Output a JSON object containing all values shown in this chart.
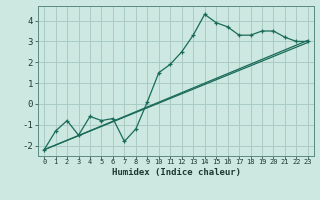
{
  "xlabel": "Humidex (Indice chaleur)",
  "bg_color": "#cce8e0",
  "grid_color": "#aaccc4",
  "line_color": "#1a6b5a",
  "xlim": [
    -0.5,
    23.5
  ],
  "ylim": [
    -2.5,
    4.7
  ],
  "xticks": [
    0,
    1,
    2,
    3,
    4,
    5,
    6,
    7,
    8,
    9,
    10,
    11,
    12,
    13,
    14,
    15,
    16,
    17,
    18,
    19,
    20,
    21,
    22,
    23
  ],
  "yticks": [
    -2,
    -1,
    0,
    1,
    2,
    3,
    4
  ],
  "line1_x": [
    0,
    1,
    2,
    3,
    4,
    5,
    6,
    7,
    8,
    9,
    10,
    11,
    12,
    13,
    14,
    15,
    16,
    17,
    18,
    19,
    20,
    21,
    22,
    23
  ],
  "line1_y": [
    -2.2,
    -1.3,
    -0.8,
    -1.5,
    -0.6,
    -0.8,
    -0.7,
    -1.8,
    -1.2,
    0.1,
    1.5,
    1.9,
    2.5,
    3.3,
    4.3,
    3.9,
    3.7,
    3.3,
    3.3,
    3.5,
    3.5,
    3.2,
    3.0,
    3.0
  ],
  "line2_x": [
    0,
    23
  ],
  "line2_y": [
    -2.2,
    2.95
  ],
  "line3_x": [
    0,
    23
  ],
  "line3_y": [
    -2.2,
    3.05
  ]
}
